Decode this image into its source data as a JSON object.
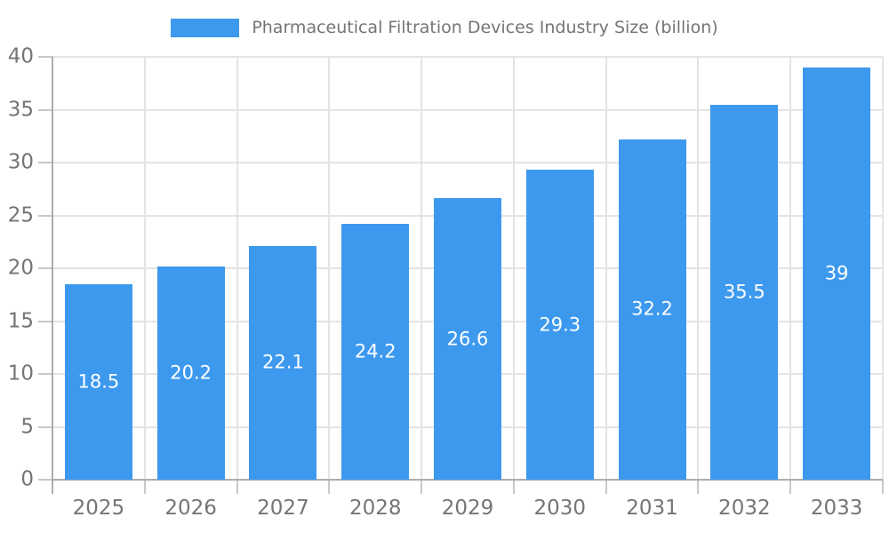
{
  "chart_data": {
    "type": "bar",
    "title": "Pharmaceutical Filtration Devices Industry Size (billion)",
    "categories": [
      "2025",
      "2026",
      "2027",
      "2028",
      "2029",
      "2030",
      "2031",
      "2032",
      "2033"
    ],
    "values": [
      18.5,
      20.2,
      22.1,
      24.2,
      26.6,
      29.3,
      32.2,
      35.5,
      39
    ],
    "series": [
      {
        "name": "Pharmaceutical Filtration Devices Industry Size (billion)",
        "values": [
          18.5,
          20.2,
          22.1,
          24.2,
          26.6,
          29.3,
          32.2,
          35.5,
          39
        ]
      }
    ],
    "xlabel": "",
    "ylabel": "",
    "ylim": [
      0,
      40
    ],
    "yticks": [
      0,
      5,
      10,
      15,
      20,
      25,
      30,
      35,
      40
    ],
    "grid": true,
    "legend_position": "top-center",
    "value_labels": "inside-center",
    "colors": {
      "bar": "#3D99EE",
      "title": "#757575",
      "axis_label": "#757575",
      "gridline": "#E4E4E4",
      "axis_line": "#ADADAD",
      "tick": "#C8C8C8",
      "value_label": "#FFFFFF",
      "background": "#FFFFFF"
    }
  }
}
